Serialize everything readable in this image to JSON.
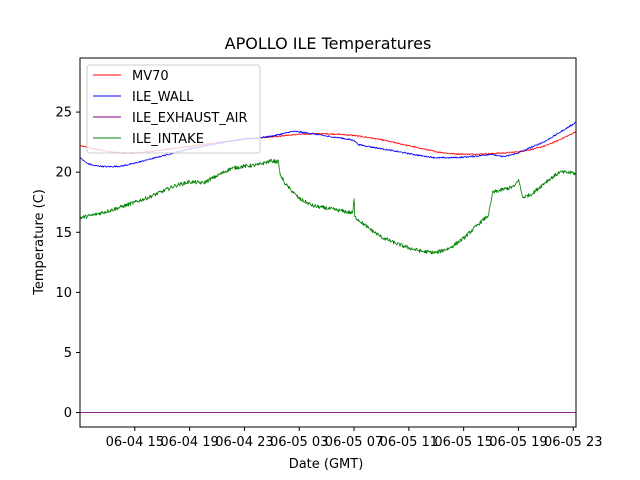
{
  "chart_data": {
    "type": "line",
    "title": "APOLLO ILE Temperatures",
    "xlabel": "Date (GMT)",
    "ylabel": "Temperature (C)",
    "x_unit": "hours since 06-04 00:00 GMT",
    "xlim": [
      11,
      47.2
    ],
    "ylim": [
      -1.2,
      29.5
    ],
    "x_ticks": [
      {
        "value": 15,
        "label": "06-04 15"
      },
      {
        "value": 19,
        "label": "06-04 19"
      },
      {
        "value": 23,
        "label": "06-04 23"
      },
      {
        "value": 27,
        "label": "06-05 03"
      },
      {
        "value": 31,
        "label": "06-05 07"
      },
      {
        "value": 35,
        "label": "06-05 11"
      },
      {
        "value": 39,
        "label": "06-05 15"
      },
      {
        "value": 43,
        "label": "06-05 19"
      },
      {
        "value": 47,
        "label": "06-05 23"
      }
    ],
    "y_ticks": [
      0,
      5,
      10,
      15,
      20,
      25
    ],
    "legend_position": "upper-left",
    "series": [
      {
        "name": "MV70",
        "color": "#ff0000",
        "noise": 0.05,
        "points": [
          [
            11,
            22.2
          ],
          [
            12,
            21.95
          ],
          [
            13,
            21.75
          ],
          [
            14,
            21.6
          ],
          [
            15,
            21.6
          ],
          [
            16,
            21.7
          ],
          [
            17,
            21.85
          ],
          [
            18,
            22.0
          ],
          [
            19,
            22.15
          ],
          [
            20,
            22.3
          ],
          [
            21,
            22.45
          ],
          [
            22,
            22.6
          ],
          [
            23,
            22.75
          ],
          [
            24,
            22.85
          ],
          [
            25,
            22.95
          ],
          [
            26,
            23.05
          ],
          [
            27,
            23.15
          ],
          [
            28,
            23.2
          ],
          [
            29,
            23.2
          ],
          [
            30,
            23.15
          ],
          [
            31,
            23.05
          ],
          [
            32,
            22.9
          ],
          [
            33,
            22.7
          ],
          [
            34,
            22.45
          ],
          [
            35,
            22.2
          ],
          [
            36,
            21.95
          ],
          [
            37,
            21.7
          ],
          [
            38,
            21.55
          ],
          [
            39,
            21.5
          ],
          [
            40,
            21.5
          ],
          [
            41,
            21.55
          ],
          [
            42,
            21.6
          ],
          [
            43,
            21.7
          ],
          [
            44,
            21.9
          ],
          [
            45,
            22.2
          ],
          [
            46,
            22.7
          ],
          [
            47,
            23.25
          ],
          [
            47.2,
            23.4
          ]
        ]
      },
      {
        "name": "ILE_WALL",
        "color": "#0000ff",
        "noise": 0.06,
        "points": [
          [
            11,
            21.2
          ],
          [
            11.5,
            20.75
          ],
          [
            12,
            20.55
          ],
          [
            13,
            20.45
          ],
          [
            14,
            20.5
          ],
          [
            15,
            20.75
          ],
          [
            16,
            21.05
          ],
          [
            17,
            21.35
          ],
          [
            18,
            21.65
          ],
          [
            19,
            21.95
          ],
          [
            20,
            22.15
          ],
          [
            21,
            22.4
          ],
          [
            22,
            22.6
          ],
          [
            23,
            22.75
          ],
          [
            24,
            22.85
          ],
          [
            25,
            23.0
          ],
          [
            26,
            23.25
          ],
          [
            26.5,
            23.4
          ],
          [
            27,
            23.35
          ],
          [
            28,
            23.2
          ],
          [
            29,
            23.0
          ],
          [
            30,
            22.85
          ],
          [
            31,
            22.65
          ],
          [
            31.3,
            22.3
          ],
          [
            32,
            22.15
          ],
          [
            33,
            21.95
          ],
          [
            34,
            21.75
          ],
          [
            35,
            21.55
          ],
          [
            36,
            21.35
          ],
          [
            37,
            21.2
          ],
          [
            38,
            21.2
          ],
          [
            39,
            21.25
          ],
          [
            40,
            21.35
          ],
          [
            41,
            21.5
          ],
          [
            41.5,
            21.35
          ],
          [
            42,
            21.3
          ],
          [
            43,
            21.6
          ],
          [
            44,
            22.1
          ],
          [
            45,
            22.6
          ],
          [
            46,
            23.3
          ],
          [
            47,
            24.0
          ],
          [
            47.2,
            24.2
          ]
        ]
      },
      {
        "name": "ILE_EXHAUST_AIR",
        "color": "#800080",
        "noise": 0,
        "points": [
          [
            11,
            0
          ],
          [
            47.2,
            0
          ]
        ]
      },
      {
        "name": "ILE_INTAKE",
        "color": "#008000",
        "noise": 0.16,
        "points": [
          [
            11,
            16.2
          ],
          [
            12,
            16.45
          ],
          [
            13,
            16.75
          ],
          [
            14,
            17.1
          ],
          [
            15,
            17.5
          ],
          [
            16,
            17.9
          ],
          [
            17,
            18.4
          ],
          [
            18,
            18.9
          ],
          [
            19,
            19.2
          ],
          [
            20,
            19.1
          ],
          [
            21,
            19.7
          ],
          [
            22,
            20.3
          ],
          [
            23,
            20.5
          ],
          [
            24,
            20.6
          ],
          [
            24.5,
            20.8
          ],
          [
            25,
            20.95
          ],
          [
            25.5,
            20.85
          ],
          [
            25.6,
            19.8
          ],
          [
            26,
            19.0
          ],
          [
            27,
            17.8
          ],
          [
            28,
            17.2
          ],
          [
            29,
            17.0
          ],
          [
            30,
            16.8
          ],
          [
            30.9,
            16.6
          ],
          [
            31,
            17.8
          ],
          [
            31.05,
            16.3
          ],
          [
            32,
            15.4
          ],
          [
            33,
            14.6
          ],
          [
            34,
            14.1
          ],
          [
            35,
            13.7
          ],
          [
            36,
            13.4
          ],
          [
            37,
            13.3
          ],
          [
            38,
            13.7
          ],
          [
            39,
            14.5
          ],
          [
            40,
            15.6
          ],
          [
            40.8,
            16.4
          ],
          [
            41,
            17.5
          ],
          [
            41.1,
            18.3
          ],
          [
            42,
            18.6
          ],
          [
            42.7,
            18.8
          ],
          [
            43,
            19.4
          ],
          [
            43.3,
            17.9
          ],
          [
            44,
            18.2
          ],
          [
            45,
            19.2
          ],
          [
            46,
            20.0
          ],
          [
            47,
            19.95
          ],
          [
            47.2,
            19.8
          ]
        ]
      }
    ]
  }
}
